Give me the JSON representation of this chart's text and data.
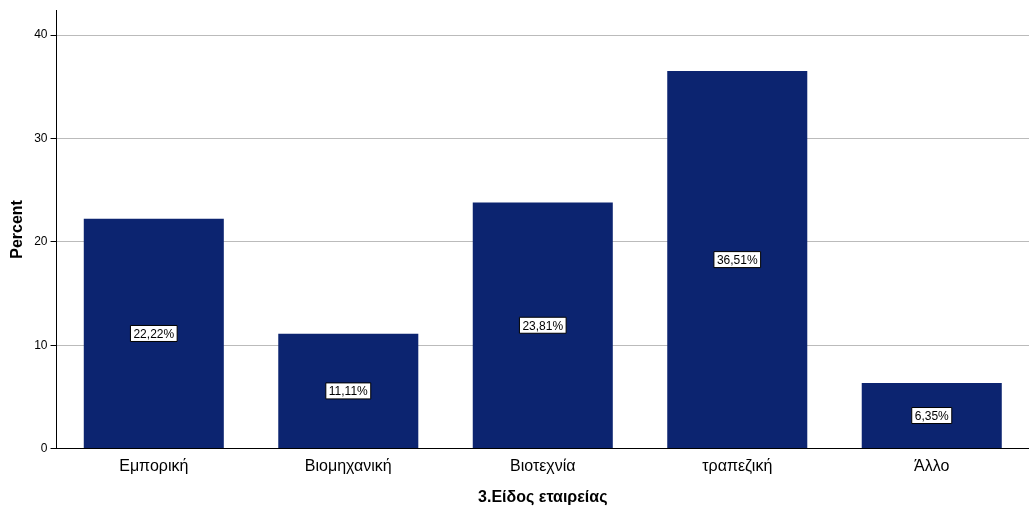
{
  "chart_data": {
    "type": "bar",
    "xlabel": "3.Είδος εταιρείας",
    "ylabel": "Percent",
    "categories": [
      "Εμπορική",
      "Βιομηχανική",
      "Βιοτεχνία",
      "τραπεζική",
      "Άλλο"
    ],
    "values": [
      22.22,
      11.11,
      23.81,
      36.51,
      6.35
    ],
    "value_labels": [
      "22,22%",
      "11,11%",
      "23,81%",
      "36,51%",
      "6,35%"
    ],
    "color": "#0c2470",
    "ylim": [
      0,
      42.4
    ],
    "yticks": [
      0,
      10,
      20,
      30,
      40
    ],
    "grid": "y",
    "legend": false
  }
}
